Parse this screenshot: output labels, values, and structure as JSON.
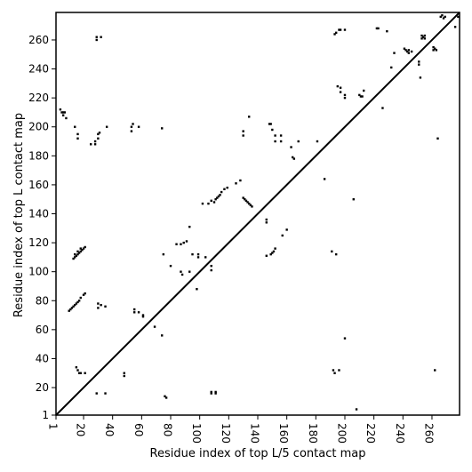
{
  "chart_data": {
    "type": "scatter",
    "title": "",
    "xlabel": "Residue index of top L/5 contact map",
    "ylabel": "Residue index of top L contact map",
    "xlim": [
      1,
      279
    ],
    "ylim": [
      1,
      279
    ],
    "xticks": [
      1,
      20,
      40,
      60,
      80,
      100,
      120,
      140,
      160,
      180,
      200,
      220,
      240,
      260
    ],
    "yticks": [
      1,
      20,
      40,
      60,
      80,
      100,
      120,
      140,
      160,
      180,
      200,
      220,
      240,
      260
    ],
    "diagonal": [
      [
        1,
        1
      ],
      [
        279,
        279
      ]
    ],
    "upper_triangle_points": [
      [
        29,
        262
      ],
      [
        29,
        260
      ],
      [
        32,
        262
      ],
      [
        4,
        212
      ],
      [
        5,
        210
      ],
      [
        6,
        210
      ],
      [
        7,
        210
      ],
      [
        6,
        208
      ],
      [
        8,
        206
      ],
      [
        14,
        200
      ],
      [
        16,
        195
      ],
      [
        16,
        192
      ],
      [
        25,
        188
      ],
      [
        28,
        188
      ],
      [
        28,
        190
      ],
      [
        30,
        195
      ],
      [
        31,
        196
      ],
      [
        30,
        192
      ],
      [
        36,
        200
      ],
      [
        53,
        200
      ],
      [
        53,
        197
      ],
      [
        54,
        202
      ],
      [
        58,
        200
      ],
      [
        74,
        199
      ],
      [
        10,
        73
      ],
      [
        11,
        74
      ],
      [
        12,
        75
      ],
      [
        13,
        76
      ],
      [
        14,
        77
      ],
      [
        15,
        78
      ],
      [
        16,
        79
      ],
      [
        17,
        80
      ],
      [
        18,
        82
      ],
      [
        20,
        84
      ],
      [
        21,
        85
      ],
      [
        13,
        109
      ],
      [
        14,
        110
      ],
      [
        15,
        111
      ],
      [
        16,
        112
      ],
      [
        17,
        113
      ],
      [
        18,
        114
      ],
      [
        19,
        115
      ],
      [
        20,
        116
      ],
      [
        21,
        117
      ],
      [
        14,
        112
      ],
      [
        16,
        114
      ],
      [
        18,
        116
      ],
      [
        30,
        78
      ],
      [
        30,
        75
      ],
      [
        32,
        77
      ],
      [
        35,
        76
      ],
      [
        55,
        74
      ],
      [
        55,
        72
      ],
      [
        58,
        72
      ],
      [
        61,
        70
      ],
      [
        61,
        69
      ],
      [
        69,
        62
      ],
      [
        74,
        56
      ],
      [
        75,
        112
      ],
      [
        80,
        104
      ],
      [
        84,
        119
      ],
      [
        87,
        119
      ],
      [
        89,
        120
      ],
      [
        91,
        121
      ],
      [
        93,
        131
      ],
      [
        95,
        112
      ],
      [
        99,
        112
      ],
      [
        99,
        110
      ],
      [
        102,
        147
      ],
      [
        104,
        110
      ],
      [
        106,
        147
      ],
      [
        108,
        149
      ],
      [
        108,
        101
      ],
      [
        108,
        104
      ],
      [
        110,
        148
      ],
      [
        111,
        150
      ],
      [
        112,
        151
      ],
      [
        113,
        152
      ],
      [
        114,
        153
      ],
      [
        115,
        155
      ],
      [
        117,
        157
      ],
      [
        119,
        158
      ],
      [
        125,
        161
      ],
      [
        128,
        163
      ],
      [
        130,
        151
      ],
      [
        131,
        150
      ],
      [
        132,
        149
      ],
      [
        133,
        148
      ],
      [
        134,
        147
      ],
      [
        135,
        146
      ],
      [
        136,
        145
      ],
      [
        134,
        207
      ],
      [
        130,
        194
      ],
      [
        130,
        197
      ],
      [
        146,
        134
      ],
      [
        146,
        136
      ],
      [
        148,
        202
      ],
      [
        149,
        202
      ],
      [
        150,
        198
      ],
      [
        152,
        194
      ],
      [
        152,
        190
      ],
      [
        156,
        194
      ],
      [
        156,
        190
      ],
      [
        146,
        111
      ],
      [
        149,
        112
      ],
      [
        150,
        113
      ],
      [
        151,
        114
      ],
      [
        152,
        116
      ],
      [
        157,
        125
      ],
      [
        160,
        129
      ],
      [
        163,
        186
      ],
      [
        164,
        179
      ],
      [
        165,
        178
      ],
      [
        168,
        190
      ],
      [
        181,
        190
      ],
      [
        186,
        164
      ],
      [
        193,
        264
      ],
      [
        194,
        265
      ],
      [
        196,
        267
      ],
      [
        197,
        267
      ],
      [
        200,
        267
      ],
      [
        195,
        228
      ],
      [
        197,
        227
      ],
      [
        197,
        224
      ],
      [
        200,
        222
      ],
      [
        200,
        220
      ],
      [
        210,
        222
      ],
      [
        211,
        221
      ],
      [
        212,
        221
      ],
      [
        213,
        225
      ],
      [
        222,
        268
      ],
      [
        223,
        268
      ],
      [
        226,
        213
      ],
      [
        229,
        266
      ],
      [
        232,
        241
      ],
      [
        234,
        251
      ],
      [
        241,
        254
      ],
      [
        242,
        253
      ],
      [
        243,
        252
      ],
      [
        244,
        253
      ],
      [
        244,
        251
      ],
      [
        246,
        252
      ],
      [
        251,
        245
      ],
      [
        251,
        243
      ],
      [
        252,
        234
      ],
      [
        253,
        263
      ],
      [
        253,
        261
      ],
      [
        254,
        262
      ],
      [
        255,
        263
      ],
      [
        255,
        261
      ],
      [
        261,
        255
      ],
      [
        261,
        253
      ],
      [
        262,
        254
      ],
      [
        263,
        253
      ],
      [
        266,
        276
      ],
      [
        267,
        277
      ],
      [
        268,
        275
      ],
      [
        269,
        276
      ],
      [
        276,
        269
      ],
      [
        278,
        276
      ],
      [
        191,
        114
      ],
      [
        194,
        112
      ],
      [
        29,
        16
      ],
      [
        35,
        16
      ],
      [
        15,
        34
      ],
      [
        16,
        32
      ],
      [
        17,
        30
      ],
      [
        18,
        30
      ],
      [
        21,
        30
      ],
      [
        48,
        30
      ],
      [
        48,
        28
      ],
      [
        108,
        16
      ],
      [
        108,
        17
      ],
      [
        111,
        16
      ],
      [
        111,
        17
      ],
      [
        192,
        32
      ],
      [
        193,
        30
      ],
      [
        196,
        32
      ],
      [
        200,
        54
      ],
      [
        208,
        5
      ],
      [
        264,
        192
      ],
      [
        262,
        32
      ],
      [
        76,
        14
      ],
      [
        77,
        13
      ],
      [
        87,
        100
      ],
      [
        88,
        98
      ],
      [
        93,
        100
      ],
      [
        98,
        88
      ],
      [
        206,
        150
      ]
    ]
  }
}
